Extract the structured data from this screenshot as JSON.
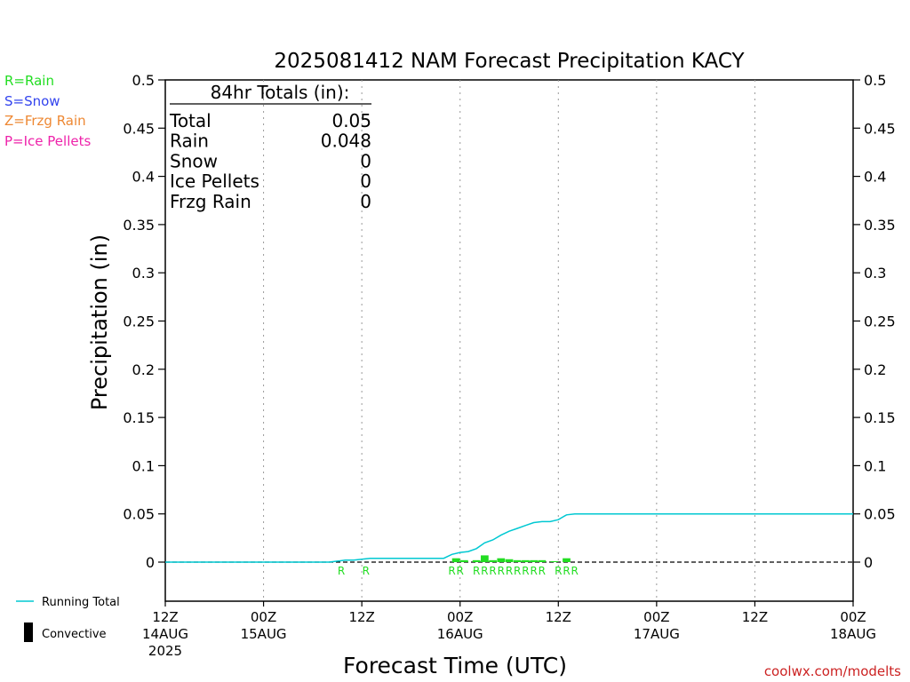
{
  "chart_data": {
    "type": "bar",
    "title": "2025081412 NAM Forecast Precipitation KACY",
    "xlabel": "Forecast Time (UTC)",
    "ylabel": "Precipitation (in)",
    "ylim": [
      -0.04,
      0.5
    ],
    "yticks": [
      "0.5",
      "0.45",
      "0.4",
      "0.35",
      "0.3",
      "0.25",
      "0.2",
      "0.15",
      "0.1",
      "0.05",
      "0"
    ],
    "ytick_values": [
      0.5,
      0.45,
      0.4,
      0.35,
      0.3,
      0.25,
      0.2,
      0.15,
      0.1,
      0.05,
      0
    ],
    "xlim_hours": [
      0,
      84
    ],
    "xticks": [
      {
        "hour": 0,
        "line1": "12Z",
        "line2": "14AUG",
        "line3": "2025"
      },
      {
        "hour": 12,
        "line1": "00Z",
        "line2": "15AUG",
        "line3": ""
      },
      {
        "hour": 24,
        "line1": "12Z",
        "line2": "",
        "line3": ""
      },
      {
        "hour": 36,
        "line1": "00Z",
        "line2": "16AUG",
        "line3": ""
      },
      {
        "hour": 48,
        "line1": "12Z",
        "line2": "",
        "line3": ""
      },
      {
        "hour": 60,
        "line1": "00Z",
        "line2": "17AUG",
        "line3": ""
      },
      {
        "hour": 72,
        "line1": "12Z",
        "line2": "",
        "line3": ""
      },
      {
        "hour": 84,
        "line1": "00Z",
        "line2": "18AUG",
        "line3": ""
      }
    ],
    "grid": "vertical dotted at each x tick",
    "legend_types": [
      {
        "label": "R=Rain",
        "color": "#22dd22"
      },
      {
        "label": "S=Snow",
        "color": "#3344ee"
      },
      {
        "label": "Z=Frzg Rain",
        "color": "#ee8833"
      },
      {
        "label": "P=Ice Pellets",
        "color": "#ee22aa"
      }
    ],
    "legend_bottom": {
      "running_total": {
        "label": "Running Total",
        "color": "#00c8d2"
      },
      "convective": {
        "label": "Convective",
        "color": "#000000"
      }
    },
    "totals": {
      "heading": "84hr Totals (in):",
      "rows": [
        {
          "label": "Total",
          "value": "0.05"
        },
        {
          "label": "Rain",
          "value": "0.048"
        },
        {
          "label": "Snow",
          "value": "0"
        },
        {
          "label": "Ice Pellets",
          "value": "0"
        },
        {
          "label": "Frzg Rain",
          "value": "0"
        }
      ]
    },
    "bars_rain": [
      {
        "hour": 35.5,
        "value": 0.004
      },
      {
        "hour": 36.5,
        "value": 0.002
      },
      {
        "hour": 38.0,
        "value": 0.002
      },
      {
        "hour": 39.0,
        "value": 0.007
      },
      {
        "hour": 40.0,
        "value": 0.002
      },
      {
        "hour": 41.0,
        "value": 0.004
      },
      {
        "hour": 42.0,
        "value": 0.003
      },
      {
        "hour": 43.0,
        "value": 0.002
      },
      {
        "hour": 44.0,
        "value": 0.002
      },
      {
        "hour": 45.0,
        "value": 0.002
      },
      {
        "hour": 46.0,
        "value": 0.002
      },
      {
        "hour": 47.5,
        "value": 0.001
      },
      {
        "hour": 49.0,
        "value": 0.004
      }
    ],
    "running_total": [
      {
        "hour": 0,
        "value": 0
      },
      {
        "hour": 20,
        "value": 0
      },
      {
        "hour": 21,
        "value": 0.001
      },
      {
        "hour": 22,
        "value": 0.002
      },
      {
        "hour": 23,
        "value": 0.002
      },
      {
        "hour": 24,
        "value": 0.003
      },
      {
        "hour": 25,
        "value": 0.004
      },
      {
        "hour": 34,
        "value": 0.004
      },
      {
        "hour": 35,
        "value": 0.008
      },
      {
        "hour": 36,
        "value": 0.01
      },
      {
        "hour": 37,
        "value": 0.011
      },
      {
        "hour": 38,
        "value": 0.014
      },
      {
        "hour": 39,
        "value": 0.02
      },
      {
        "hour": 40,
        "value": 0.023
      },
      {
        "hour": 41,
        "value": 0.028
      },
      {
        "hour": 42,
        "value": 0.032
      },
      {
        "hour": 43,
        "value": 0.035
      },
      {
        "hour": 44,
        "value": 0.038
      },
      {
        "hour": 45,
        "value": 0.041
      },
      {
        "hour": 46,
        "value": 0.042
      },
      {
        "hour": 47,
        "value": 0.042
      },
      {
        "hour": 48,
        "value": 0.044
      },
      {
        "hour": 49,
        "value": 0.049
      },
      {
        "hour": 50,
        "value": 0.05
      },
      {
        "hour": 84,
        "value": 0.05
      }
    ],
    "type_markers": [
      {
        "hour": 21.5,
        "label": "R"
      },
      {
        "hour": 24.5,
        "label": "R"
      },
      {
        "hour": 35.0,
        "label": "R"
      },
      {
        "hour": 36.0,
        "label": "R"
      },
      {
        "hour": 38.0,
        "label": "R"
      },
      {
        "hour": 39.0,
        "label": "R"
      },
      {
        "hour": 40.0,
        "label": "R"
      },
      {
        "hour": 41.0,
        "label": "R"
      },
      {
        "hour": 42.0,
        "label": "R"
      },
      {
        "hour": 43.0,
        "label": "R"
      },
      {
        "hour": 44.0,
        "label": "R"
      },
      {
        "hour": 45.0,
        "label": "R"
      },
      {
        "hour": 46.0,
        "label": "R"
      },
      {
        "hour": 48.0,
        "label": "R"
      },
      {
        "hour": 49.0,
        "label": "R"
      },
      {
        "hour": 50.0,
        "label": "R"
      }
    ],
    "watermark": "coolwx.com/modelts"
  }
}
